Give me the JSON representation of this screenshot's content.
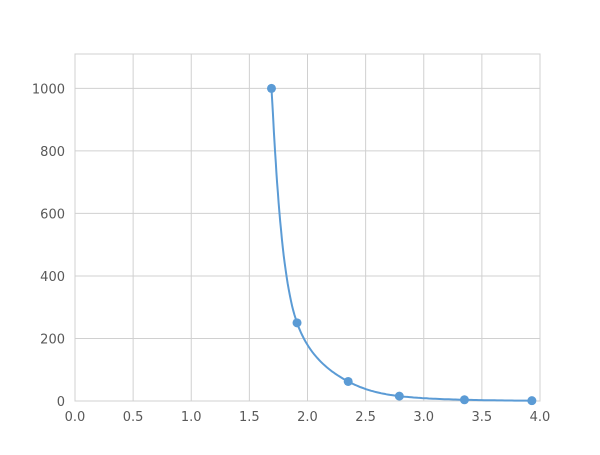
{
  "chart_data": {
    "type": "scatter",
    "title": "",
    "xlabel": "",
    "ylabel": "",
    "xlim": [
      0,
      4
    ],
    "ylim": [
      0,
      1110
    ],
    "x_ticks": [
      "0.0",
      "0.5",
      "1.0",
      "1.5",
      "2.0",
      "2.5",
      "3.0",
      "3.5",
      "4.0"
    ],
    "y_ticks": [
      "0",
      "200",
      "400",
      "600",
      "800",
      "1000"
    ],
    "grid": true,
    "legend": "none",
    "smooth_line": true,
    "color": "#5B9BD5",
    "series": [
      {
        "x": [
          1.69,
          1.91,
          2.35,
          2.79,
          3.35,
          3.93
        ],
        "y": [
          1000,
          250,
          62.5,
          15.6,
          3.9,
          1
        ]
      }
    ]
  }
}
